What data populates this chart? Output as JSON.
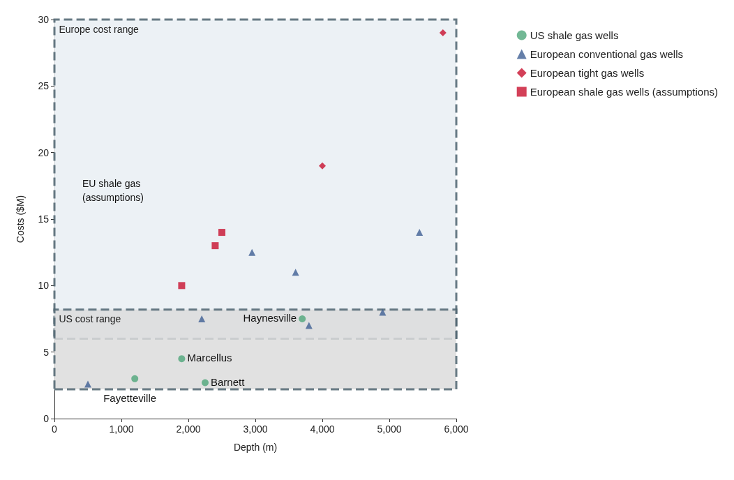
{
  "chart_data": {
    "type": "scatter",
    "xlabel": "Depth (m)",
    "ylabel": "Costs ($M)",
    "xlim": [
      0,
      6000
    ],
    "xticks": [
      0,
      {
        "value": 1000,
        "label": "1,000"
      },
      {
        "value": 2000,
        "label": "2,000"
      },
      {
        "value": 3000,
        "label": "3,000"
      },
      {
        "value": 4000,
        "label": "4,000"
      },
      {
        "value": 5000,
        "label": "5,000"
      },
      {
        "value": 6000,
        "label": "6,000"
      }
    ],
    "ylim": [
      0,
      30
    ],
    "yticks": [
      0,
      5,
      10,
      15,
      20,
      25,
      30
    ],
    "grid": false,
    "legend": "top right",
    "series": [
      {
        "name": "US shale gas wells",
        "color": "#4fa67a",
        "marker": "circle",
        "x": [
          1200,
          1900,
          2250,
          3700
        ],
        "values": [
          3.0,
          4.5,
          2.7,
          7.5
        ]
      },
      {
        "name": "European conventional gas wells",
        "color": "#3f5f93",
        "marker": "triangle",
        "x": [
          500,
          2200,
          2950,
          3600,
          3800,
          4900,
          5450
        ],
        "values": [
          2.6,
          7.5,
          12.5,
          11,
          7,
          8,
          14
        ]
      },
      {
        "name": "European tight gas wells",
        "color": "#c8102e",
        "marker": "diamond",
        "x": [
          4000,
          5800
        ],
        "values": [
          19,
          29
        ]
      },
      {
        "name": "European shale gas wells (assumptions)",
        "color": "#c8102e",
        "marker": "square",
        "x": [
          1900,
          2400,
          2500
        ],
        "values": [
          10,
          13,
          14
        ]
      }
    ],
    "bands": [
      {
        "axis": "y",
        "from": 6,
        "to": 30,
        "label": "Europe cost range",
        "color": "#e9eff3"
      },
      {
        "axis": "y",
        "from": 2.2,
        "to": 8.2,
        "label": "US cost range",
        "color": "#dcdcdc"
      }
    ],
    "annotations": [
      {
        "text": "Fayetteville",
        "x": 1200,
        "y": 3.0
      },
      {
        "text": "Marcellus",
        "x": 1900,
        "y": 4.5
      },
      {
        "text": "Barnett",
        "x": 2250,
        "y": 2.7
      },
      {
        "text": "Haynesville",
        "x": 3700,
        "y": 7.5
      },
      "EU shale gas\n(assumptions)"
    ]
  }
}
